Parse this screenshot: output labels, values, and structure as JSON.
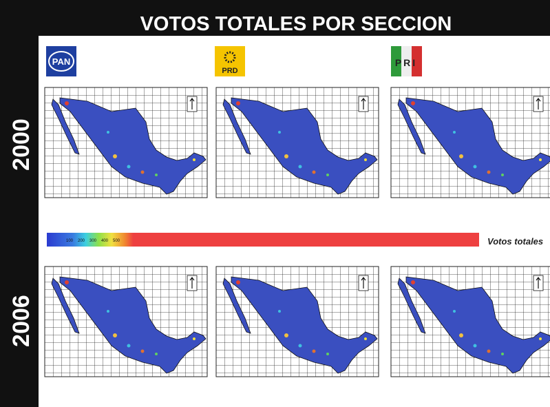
{
  "header": {
    "title": "VOTOS TOTALES POR SECCION"
  },
  "years": [
    "2000",
    "2006"
  ],
  "parties": [
    "PAN",
    "PRD",
    "PRI"
  ],
  "legend": {
    "ticks": [
      100,
      200,
      300,
      400,
      500
    ],
    "label": "Votos totales"
  }
}
